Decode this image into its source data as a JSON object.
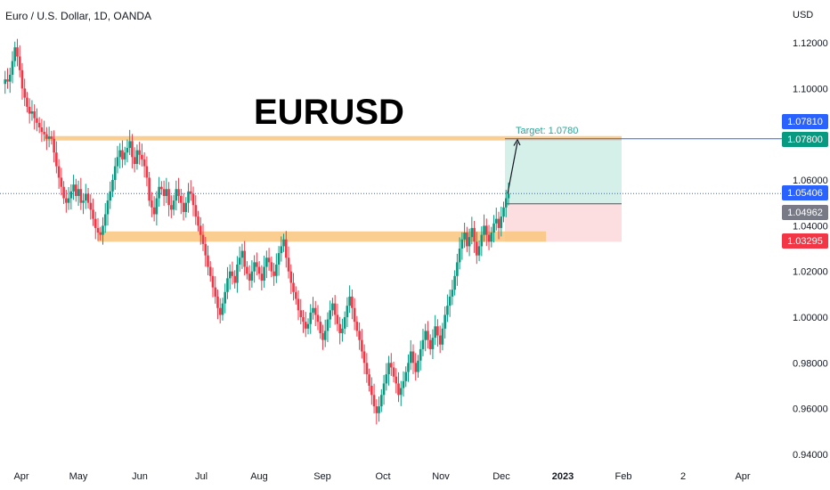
{
  "header": {
    "symbol_title": "Euro / U.S. Dollar, 1D, OANDA"
  },
  "overlay": {
    "big_label": "EURUSD"
  },
  "chart_data": {
    "type": "candlestick",
    "currency_label": "USD",
    "ylim": [
      0.935,
      1.127
    ],
    "y_ticks": [
      "1.12000",
      "1.10000",
      "1.06000",
      "1.04000",
      "1.02000",
      "1.00000",
      "0.98000",
      "0.96000",
      "0.94000"
    ],
    "y_tick_values": [
      1.12,
      1.1,
      1.06,
      1.04,
      1.02,
      1.0,
      0.98,
      0.96,
      0.94
    ],
    "x_ticks": [
      {
        "label": "Apr",
        "bold": false
      },
      {
        "label": "May",
        "bold": false
      },
      {
        "label": "Jun",
        "bold": false
      },
      {
        "label": "Jul",
        "bold": false
      },
      {
        "label": "Aug",
        "bold": false
      },
      {
        "label": "Sep",
        "bold": false
      },
      {
        "label": "Oct",
        "bold": false
      },
      {
        "label": "Nov",
        "bold": false
      },
      {
        "label": "Dec",
        "bold": false
      },
      {
        "label": "2023",
        "bold": true
      },
      {
        "label": "Feb",
        "bold": false
      },
      {
        "label": "2",
        "bold": false
      },
      {
        "label": "Apr",
        "bold": false
      }
    ],
    "price_path": [
      1.102,
      1.104,
      1.103,
      1.106,
      1.112,
      1.118,
      1.114,
      1.108,
      1.1,
      1.096,
      1.092,
      1.089,
      1.09,
      1.087,
      1.085,
      1.083,
      1.081,
      1.08,
      1.078,
      1.079,
      1.078,
      1.072,
      1.066,
      1.061,
      1.057,
      1.052,
      1.05,
      1.052,
      1.055,
      1.058,
      1.053,
      1.056,
      1.05,
      1.051,
      1.054,
      1.05,
      1.047,
      1.043,
      1.039,
      1.037,
      1.036,
      1.04,
      1.045,
      1.051,
      1.055,
      1.06,
      1.066,
      1.07,
      1.073,
      1.069,
      1.072,
      1.074,
      1.077,
      1.07,
      1.067,
      1.073,
      1.071,
      1.069,
      1.066,
      1.061,
      1.051,
      1.048,
      1.045,
      1.052,
      1.057,
      1.056,
      1.053,
      1.056,
      1.049,
      1.047,
      1.051,
      1.056,
      1.053,
      1.05,
      1.046,
      1.05,
      1.055,
      1.054,
      1.049,
      1.044,
      1.04,
      1.036,
      1.032,
      1.027,
      1.022,
      1.018,
      1.013,
      1.009,
      1.004,
      1.001,
      1.006,
      1.011,
      1.017,
      1.02,
      1.018,
      1.015,
      1.023,
      1.026,
      1.029,
      1.022,
      1.019,
      1.016,
      1.02,
      1.024,
      1.022,
      1.019,
      1.016,
      1.022,
      1.026,
      1.024,
      1.02,
      1.018,
      1.023,
      1.028,
      1.031,
      1.034,
      1.026,
      1.02,
      1.015,
      1.011,
      1.008,
      1.003,
      1.0,
      0.998,
      0.995,
      0.997,
      1.002,
      1.004,
      1.001,
      0.998,
      0.993,
      0.99,
      0.994,
      0.999,
      1.003,
      1.006,
      1.001,
      0.997,
      0.993,
      0.995,
      1.0,
      1.005,
      1.009,
      1.004,
      0.998,
      0.994,
      0.99,
      0.985,
      0.98,
      0.975,
      0.97,
      0.966,
      0.961,
      0.958,
      0.961,
      0.966,
      0.971,
      0.975,
      0.98,
      0.978,
      0.974,
      0.971,
      0.966,
      0.969,
      0.972,
      0.976,
      0.98,
      0.985,
      0.98,
      0.976,
      0.981,
      0.986,
      0.99,
      0.994,
      0.99,
      0.986,
      0.991,
      0.996,
      0.992,
      0.988,
      0.995,
      1.001,
      1.005,
      1.009,
      1.012,
      1.018,
      1.024,
      1.03,
      1.034,
      1.037,
      1.031,
      1.035,
      1.039,
      1.033,
      1.027,
      1.031,
      1.036,
      1.04,
      1.036,
      1.033,
      1.037,
      1.041,
      1.043,
      1.039,
      1.044,
      1.048,
      1.052,
      1.054
    ],
    "annotations": {
      "resistance_zone": [
        1.0775,
        1.0792
      ],
      "support_zone": [
        1.033,
        1.0375
      ],
      "stop_zone": [
        1.033,
        1.0496
      ],
      "target_zone": [
        1.0496,
        1.078
      ],
      "target_label": "Target: 1.0780"
    },
    "price_badges": [
      {
        "value": 1.0781,
        "label": "1.07810",
        "color": "#2962ff"
      },
      {
        "value": 1.078,
        "label": "1.07800",
        "color": "#089981"
      },
      {
        "value": 1.05406,
        "label": "1.05406",
        "color": "#2962ff"
      },
      {
        "value": 1.04962,
        "label": "1.04962",
        "color": "#787b86"
      },
      {
        "value": 1.03295,
        "label": "1.03295",
        "color": "#f23645"
      }
    ],
    "colors": {
      "up": "#089981",
      "down": "#f23645",
      "zone": "#f9c57d",
      "target_fill": "#d5efe9",
      "stop_fill": "#fcdde0",
      "line_blue": "#2962ff"
    }
  }
}
